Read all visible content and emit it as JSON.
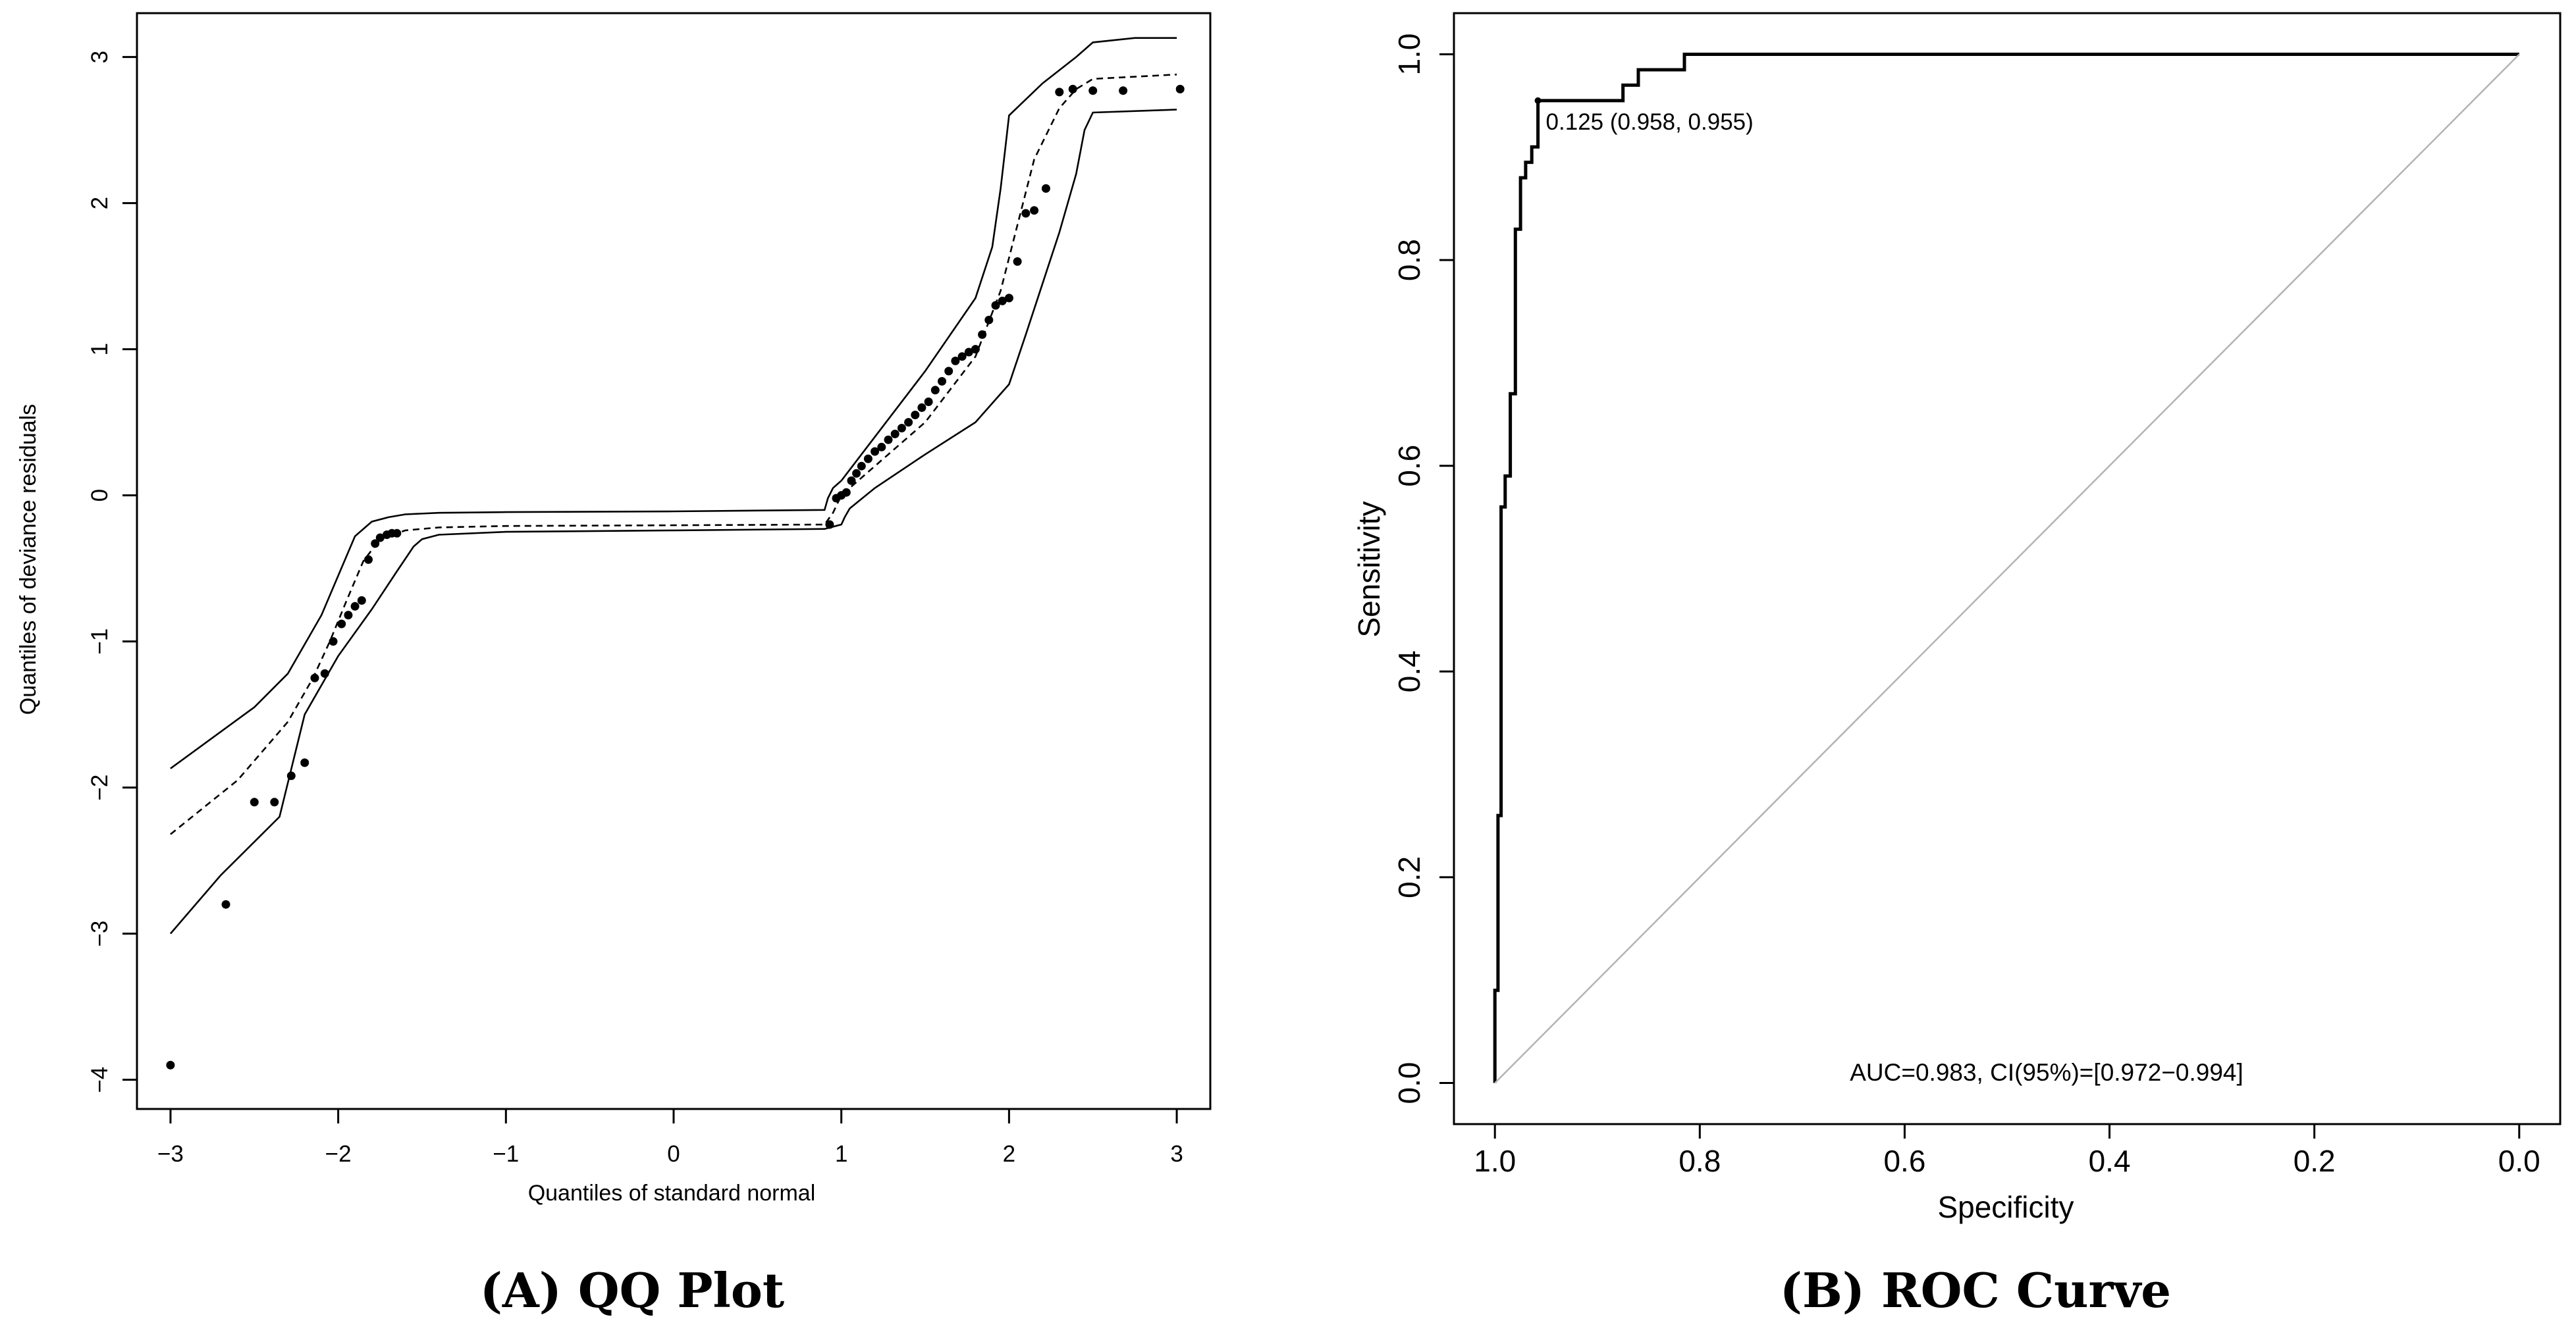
{
  "chart_data": [
    {
      "type": "scatter",
      "caption": "(A) QQ Plot",
      "xlabel": "Quantiles of standard normal",
      "ylabel": "Quantiles of deviance residuals",
      "xlim": [
        -3.2,
        3.2
      ],
      "ylim": [
        -4.2,
        3.3
      ],
      "x_ticks": [
        -3,
        -2,
        -1,
        0,
        1,
        2,
        3
      ],
      "x_tick_labels": [
        "−3",
        "−2",
        "−1",
        "0",
        "1",
        "2",
        "3"
      ],
      "y_ticks": [
        -4,
        -3,
        -2,
        -1,
        0,
        1,
        2,
        3
      ],
      "y_tick_labels": [
        "−4",
        "−3",
        "−2",
        "−1",
        "0",
        "1",
        "2",
        "3"
      ],
      "grid": false,
      "series": [
        {
          "role": "points",
          "x": [
            -3.0,
            -2.67,
            -2.5,
            -2.38,
            -2.28,
            -2.2,
            -2.14,
            -2.08,
            -2.03,
            -1.98,
            -1.94,
            -1.9,
            -1.86,
            -1.82,
            -1.78,
            -1.75,
            -1.71,
            -1.68,
            -1.65,
            0.93,
            0.97,
            1.0,
            1.03,
            1.06,
            1.09,
            1.12,
            1.16,
            1.2,
            1.24,
            1.28,
            1.32,
            1.36,
            1.4,
            1.44,
            1.48,
            1.52,
            1.56,
            1.6,
            1.64,
            1.68,
            1.72,
            1.76,
            1.8,
            1.84,
            1.88,
            1.92,
            1.96,
            2.0,
            2.05,
            2.1,
            2.15,
            2.22,
            2.3,
            2.38,
            2.5,
            2.68,
            3.02
          ],
          "y": [
            -3.9,
            -2.8,
            -2.1,
            -2.1,
            -1.92,
            -1.83,
            -1.25,
            -1.22,
            -1.0,
            -0.88,
            -0.82,
            -0.76,
            -0.72,
            -0.44,
            -0.33,
            -0.29,
            -0.27,
            -0.26,
            -0.26,
            -0.2,
            -0.02,
            0.0,
            0.02,
            0.1,
            0.15,
            0.2,
            0.25,
            0.3,
            0.33,
            0.38,
            0.42,
            0.46,
            0.5,
            0.55,
            0.6,
            0.64,
            0.72,
            0.78,
            0.85,
            0.92,
            0.95,
            0.98,
            1.0,
            1.1,
            1.2,
            1.3,
            1.33,
            1.35,
            1.6,
            1.93,
            1.95,
            2.1,
            2.76,
            2.78,
            2.77,
            2.77,
            2.78
          ]
        },
        {
          "role": "reference-line",
          "x": [
            -3.0,
            -2.6,
            -2.3,
            -2.15,
            -2.05,
            -1.95,
            -1.85,
            -1.75,
            -1.6,
            -1.4,
            -1.0,
            0.0,
            0.9,
            0.95,
            1.0,
            1.2,
            1.5,
            1.8,
            1.95,
            2.05,
            2.15,
            2.3,
            2.4,
            2.5,
            3.0
          ],
          "y": [
            -2.32,
            -1.95,
            -1.55,
            -1.25,
            -1.0,
            -0.72,
            -0.45,
            -0.3,
            -0.24,
            -0.22,
            -0.21,
            -0.205,
            -0.2,
            -0.12,
            0.0,
            0.2,
            0.5,
            0.95,
            1.4,
            1.85,
            2.3,
            2.65,
            2.78,
            2.85,
            2.88
          ]
        },
        {
          "role": "upper-envelope",
          "x": [
            -3.0,
            -2.5,
            -2.3,
            -2.1,
            -2.0,
            -1.9,
            -1.8,
            -1.7,
            -1.6,
            -1.4,
            -1.0,
            0.0,
            0.9,
            0.92,
            0.95,
            1.0,
            1.2,
            1.5,
            1.8,
            1.9,
            1.95,
            1.98,
            2.0,
            2.2,
            2.4,
            2.5,
            2.75,
            3.0
          ],
          "y": [
            -1.87,
            -1.45,
            -1.22,
            -0.82,
            -0.55,
            -0.28,
            -0.18,
            -0.15,
            -0.13,
            -0.12,
            -0.115,
            -0.11,
            -0.1,
            -0.02,
            0.05,
            0.1,
            0.4,
            0.85,
            1.35,
            1.7,
            2.1,
            2.4,
            2.6,
            2.82,
            3.0,
            3.1,
            3.13,
            3.13
          ]
        },
        {
          "role": "lower-envelope",
          "x": [
            -3.0,
            -2.7,
            -2.35,
            -2.2,
            -2.0,
            -1.8,
            -1.65,
            -1.55,
            -1.5,
            -1.4,
            -1.0,
            0.0,
            0.9,
            1.0,
            1.02,
            1.05,
            1.2,
            1.5,
            1.8,
            2.0,
            2.1,
            2.2,
            2.3,
            2.4,
            2.45,
            2.5,
            3.0
          ],
          "y": [
            -3.0,
            -2.6,
            -2.2,
            -1.5,
            -1.1,
            -0.78,
            -0.52,
            -0.35,
            -0.3,
            -0.27,
            -0.25,
            -0.24,
            -0.23,
            -0.2,
            -0.15,
            -0.09,
            0.05,
            0.28,
            0.5,
            0.76,
            1.1,
            1.45,
            1.8,
            2.2,
            2.5,
            2.62,
            2.64
          ]
        }
      ]
    },
    {
      "type": "line",
      "caption": "(B) ROC Curve",
      "xlabel": "Specificity",
      "ylabel": "Sensitivity",
      "xlim": [
        1.04,
        -0.04
      ],
      "ylim": [
        -0.04,
        1.04
      ],
      "x_ticks": [
        1.0,
        0.8,
        0.6,
        0.4,
        0.2,
        0.0
      ],
      "x_tick_labels": [
        "1.0",
        "0.8",
        "0.6",
        "0.4",
        "0.2",
        "0.0"
      ],
      "y_ticks": [
        0.0,
        0.2,
        0.4,
        0.6,
        0.8,
        1.0
      ],
      "y_tick_labels": [
        "0.0",
        "0.2",
        "0.4",
        "0.6",
        "0.8",
        "1.0"
      ],
      "grid": false,
      "series": [
        {
          "role": "roc-curve",
          "x": [
            1.0,
            1.0,
            0.997,
            0.997,
            0.994,
            0.994,
            0.99,
            0.99,
            0.985,
            0.985,
            0.98,
            0.98,
            0.975,
            0.975,
            0.97,
            0.97,
            0.964,
            0.964,
            0.958,
            0.958,
            0.875,
            0.875,
            0.86,
            0.86,
            0.815,
            0.815,
            0.0
          ],
          "y": [
            0.0,
            0.09,
            0.09,
            0.26,
            0.26,
            0.56,
            0.56,
            0.59,
            0.59,
            0.67,
            0.67,
            0.83,
            0.83,
            0.88,
            0.88,
            0.895,
            0.895,
            0.91,
            0.91,
            0.955,
            0.955,
            0.97,
            0.97,
            0.985,
            0.985,
            1.0,
            1.0
          ]
        },
        {
          "role": "diagonal-reference",
          "x": [
            1.0,
            0.0
          ],
          "y": [
            0.0,
            1.0
          ]
        }
      ],
      "annotations": [
        {
          "text": "0.125 (0.958, 0.955)",
          "x": 0.958,
          "y": 0.955
        },
        {
          "text": "AUC=0.983, CI(95%)=[0.972−0.994]",
          "x": 0.5,
          "y": 0.01
        }
      ]
    }
  ]
}
